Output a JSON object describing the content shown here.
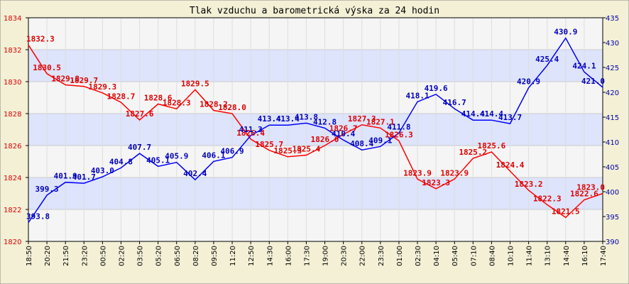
{
  "chart_data": {
    "type": "line",
    "title": "Tlak vzduchu a barometrická výska za 24 hodin",
    "x": [
      "18:50",
      "20:20",
      "21:50",
      "23:20",
      "00:50",
      "02:20",
      "03:50",
      "05:20",
      "06:50",
      "08:20",
      "09:50",
      "11:20",
      "12:50",
      "14:30",
      "16:00",
      "17:30",
      "19:00",
      "20:30",
      "22:00",
      "23:30",
      "01:00",
      "02:30",
      "04:10",
      "05:40",
      "07:10",
      "08:40",
      "10:10",
      "11:40",
      "13:10",
      "14:40",
      "16:10",
      "17:40"
    ],
    "series": [
      {
        "axis": "left",
        "color": "#FF0000",
        "label_color": "#DD0000",
        "values": [
          1832.3,
          1830.5,
          1829.8,
          1829.7,
          1829.3,
          1828.7,
          1827.6,
          1828.6,
          1828.3,
          1829.5,
          1828.2,
          1828.0,
          1826.4,
          1825.7,
          1825.3,
          1825.4,
          1826.0,
          1826.7,
          1827.3,
          1827.1,
          1826.3,
          1823.9,
          1823.3,
          1823.9,
          1825.2,
          1825.6,
          1824.4,
          1823.2,
          1822.3,
          1821.5,
          1822.6,
          1823.0
        ],
        "labels": [
          "1832.3",
          "1830.5",
          "1829.8",
          "1829.7",
          "1829.3",
          "1828.7",
          "1827.6",
          "1828.6",
          "1828.3",
          "1829.5",
          "1828.2",
          "1828.0",
          "1826.4",
          "1825.7",
          "1825.3",
          "1825.4",
          "1826.0",
          "1826.7",
          "1827.3",
          "1827.1",
          "1826.3",
          "1823.9",
          "1823.3",
          "1823.9",
          "1825.2",
          "1825.6",
          "1824.4",
          "1823.2",
          "1822.3",
          "1821.5",
          "1822.6",
          "1823.0"
        ]
      },
      {
        "axis": "right",
        "color": "#0000FF",
        "label_color": "#0000BB",
        "values": [
          393.8,
          399.3,
          401.9,
          401.7,
          403.0,
          404.8,
          407.7,
          405.1,
          405.9,
          402.4,
          406.1,
          406.9,
          411.3,
          413.4,
          413.4,
          413.8,
          412.8,
          410.4,
          408.4,
          409.1,
          411.8,
          418.1,
          419.6,
          416.7,
          414.4,
          414.4,
          413.7,
          420.9,
          425.4,
          430.9,
          424.1,
          421.0
        ],
        "labels": [
          "393.8",
          "399.3",
          "401.9",
          "401.7",
          "403.0",
          "404.8",
          "407.7",
          "405.1",
          "405.9",
          "402.4",
          "406.1",
          "406.9",
          "411.3",
          "413.4",
          "413.4",
          "413.8",
          "412.8",
          "410.4",
          "408.4",
          "409.1",
          "411.8",
          "418.1",
          "419.6",
          "416.7",
          "414.4",
          "414.4",
          "413.7",
          "420.9",
          "425.4",
          "430.9",
          "424.1",
          "421.0"
        ]
      }
    ],
    "y_left": {
      "min": 1820,
      "max": 1834,
      "ticks": [
        "1820",
        "1822",
        "1824",
        "1826",
        "1828",
        "1830",
        "1832",
        "1834"
      ]
    },
    "y_right": {
      "min": 390,
      "max": 435,
      "ticks": [
        "390",
        "395",
        "400",
        "405",
        "410",
        "415",
        "420",
        "425",
        "430",
        "435"
      ]
    },
    "grid": true,
    "colors": {
      "background": "#F3F0D6",
      "band_light": "#F5F5F5",
      "band_blue": "#DDE4FC",
      "border": "#000000"
    }
  }
}
